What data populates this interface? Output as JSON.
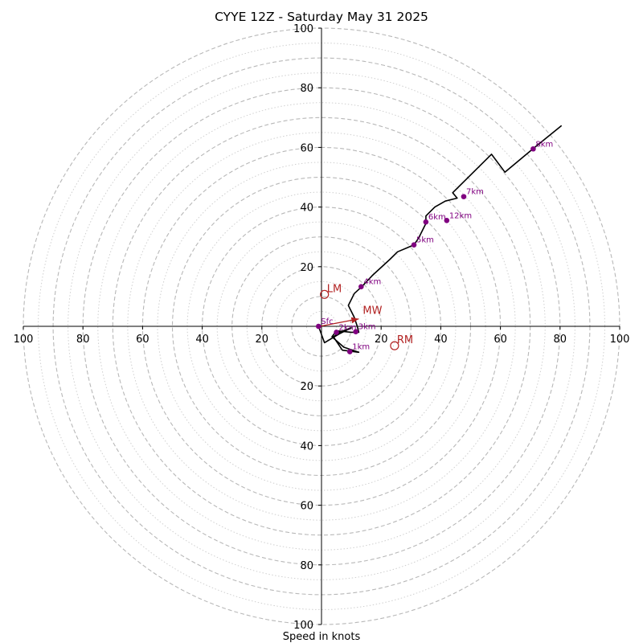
{
  "chart_data": {
    "type": "hodograph",
    "title": "CYYE 12Z - Saturday May 31 2025",
    "xlabel": "Speed in knots",
    "units": "knots",
    "range": 100,
    "dashed_rings": [
      10,
      20,
      30,
      40,
      50,
      60,
      70,
      80,
      90,
      100
    ],
    "dotted_rings": [
      5,
      15,
      25,
      35,
      45,
      55,
      65,
      75,
      85,
      95
    ],
    "x_ticks": [
      {
        "label": "100",
        "value": -100
      },
      {
        "label": "80",
        "value": -80
      },
      {
        "label": "60",
        "value": -60
      },
      {
        "label": "40",
        "value": -40
      },
      {
        "label": "20",
        "value": -20
      },
      {
        "label": "20",
        "value": 20
      },
      {
        "label": "40",
        "value": 40
      },
      {
        "label": "60",
        "value": 60
      },
      {
        "label": "80",
        "value": 80
      },
      {
        "label": "100",
        "value": 100
      }
    ],
    "y_ticks": [
      {
        "label": "100",
        "value": 100
      },
      {
        "label": "80",
        "value": 80
      },
      {
        "label": "60",
        "value": 60
      },
      {
        "label": "40",
        "value": 40
      },
      {
        "label": "20",
        "value": 20
      },
      {
        "label": "20",
        "value": -20
      },
      {
        "label": "40",
        "value": -40
      },
      {
        "label": "60",
        "value": -60
      },
      {
        "label": "80",
        "value": -80
      },
      {
        "label": "100",
        "value": -100
      }
    ],
    "trace": [
      [
        -1,
        0
      ],
      [
        1,
        -5.5
      ],
      [
        6,
        -2.5
      ],
      [
        10,
        -0.5
      ],
      [
        6,
        -2
      ],
      [
        4,
        -3.5
      ],
      [
        7,
        -8
      ],
      [
        12.5,
        -8.7
      ],
      [
        7.5,
        -7
      ],
      [
        3.5,
        -3.5
      ],
      [
        5,
        -1.5
      ],
      [
        10,
        -2
      ],
      [
        12.5,
        -2
      ],
      [
        12,
        0
      ],
      [
        11,
        3
      ],
      [
        9,
        7
      ],
      [
        11,
        11
      ],
      [
        13.5,
        13.3
      ],
      [
        17,
        17
      ],
      [
        23,
        22.5
      ],
      [
        25.5,
        25
      ],
      [
        31,
        27.3
      ],
      [
        32.5,
        29.5
      ],
      [
        35,
        34.5
      ],
      [
        35,
        37
      ],
      [
        38,
        40
      ],
      [
        41.5,
        42
      ],
      [
        45.5,
        43
      ],
      [
        44,
        44.8
      ],
      [
        57,
        57.7
      ],
      [
        61.5,
        51.7
      ],
      [
        71,
        59.6
      ],
      [
        80.5,
        67.3
      ]
    ],
    "trace_color": "#000000",
    "height_labels": [
      {
        "label": "Sfc",
        "u": -1,
        "v": 0
      },
      {
        "label": "1km",
        "u": 9.5,
        "v": -8.5
      },
      {
        "label": "2km",
        "u": 5,
        "v": -2
      },
      {
        "label": "3km",
        "u": 11.5,
        "v": -1.8
      },
      {
        "label": "4km",
        "u": 13.3,
        "v": 13.3
      },
      {
        "label": "5km",
        "u": 31,
        "v": 27.3
      },
      {
        "label": "6km",
        "u": 35,
        "v": 35
      },
      {
        "label": "7km",
        "u": 47.7,
        "v": 43.5
      },
      {
        "label": "8km",
        "u": 71,
        "v": 59.5
      },
      {
        "label": "12km",
        "u": 42,
        "v": 35.5
      }
    ],
    "height_marker_color": "#800080",
    "storm_motion": {
      "mean_wind": {
        "label": "MW",
        "u": 12.5,
        "v": 2.5
      },
      "left_mover": {
        "label": "LM",
        "u": 1,
        "v": 10.7
      },
      "right_mover": {
        "label": "RM",
        "u": 24.5,
        "v": -6.5
      },
      "color": "#b22222"
    }
  }
}
